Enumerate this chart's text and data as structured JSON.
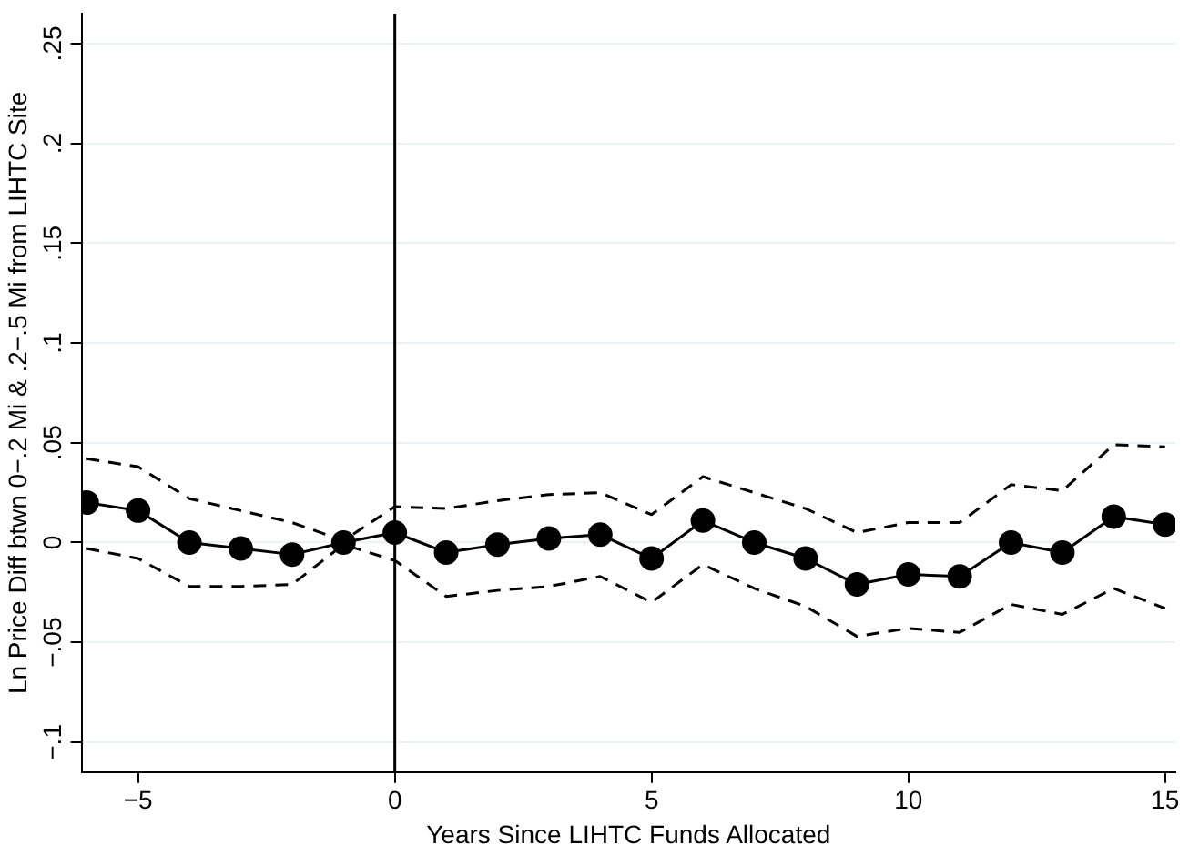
{
  "chart_data": {
    "type": "line",
    "xlabel": "Years Since LIHTC Funds Allocated",
    "ylabel": "Ln Price Diff btwn 0−.2 Mi & .2−.5 Mi from LIHTC Site",
    "x": [
      -6,
      -5,
      -4,
      -3,
      -2,
      -1,
      0,
      1,
      2,
      3,
      4,
      5,
      6,
      7,
      8,
      9,
      10,
      11,
      12,
      13,
      14,
      15
    ],
    "series": [
      {
        "color": "#000000",
        "marker": "circle",
        "line_style": "solid",
        "values": [
          0.02,
          0.016,
          0.0,
          -0.003,
          -0.006,
          0.0,
          0.005,
          -0.005,
          -0.001,
          0.002,
          0.004,
          -0.008,
          0.011,
          0.0,
          -0.008,
          -0.021,
          -0.016,
          -0.017,
          0.0,
          -0.005,
          0.013,
          0.009
        ]
      },
      {
        "color": "#000000",
        "marker": "none",
        "line_style": "dashed",
        "values": [
          0.042,
          0.038,
          0.022,
          0.016,
          0.01,
          0.001,
          0.018,
          0.017,
          0.021,
          0.024,
          0.025,
          0.014,
          0.033,
          0.025,
          0.017,
          0.005,
          0.01,
          0.01,
          0.029,
          0.026,
          0.049,
          0.048
        ]
      },
      {
        "color": "#000000",
        "marker": "none",
        "line_style": "dashed",
        "values": [
          -0.003,
          -0.008,
          -0.022,
          -0.022,
          -0.021,
          -0.001,
          -0.009,
          -0.027,
          -0.024,
          -0.022,
          -0.017,
          -0.03,
          -0.011,
          -0.023,
          -0.032,
          -0.047,
          -0.043,
          -0.045,
          -0.031,
          -0.036,
          -0.023,
          -0.033
        ]
      }
    ],
    "xlim": [
      -6.1,
      15.2
    ],
    "xticks": [
      {
        "value": -5,
        "label": "−5"
      },
      0,
      5,
      10,
      15
    ],
    "ylim": [
      -0.115,
      0.265
    ],
    "yticks": [
      {
        "value": -0.1,
        "label": "−.1"
      },
      {
        "value": -0.05,
        "label": "−.05"
      },
      0,
      {
        "value": 0.05,
        "label": ".05"
      },
      {
        "value": 0.1,
        "label": ".1"
      },
      {
        "value": 0.15,
        "label": ".15"
      },
      {
        "value": 0.2,
        "label": ".2"
      },
      {
        "value": 0.25,
        "label": ".25"
      }
    ],
    "grid": "y",
    "legend": false,
    "ref_lines": [
      {
        "axis": "x",
        "value": 0,
        "color": "#000000",
        "line_style": "solid"
      }
    ]
  }
}
